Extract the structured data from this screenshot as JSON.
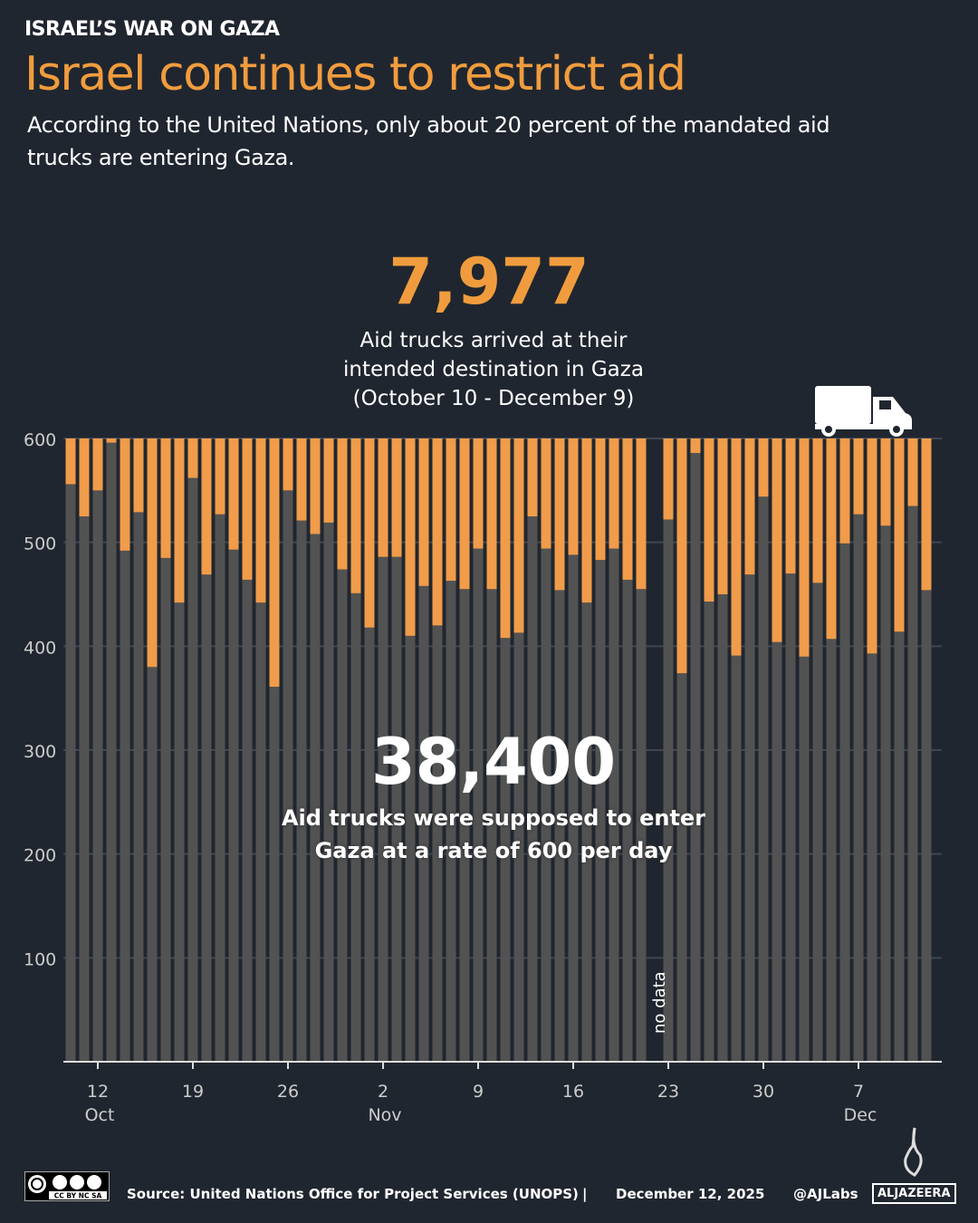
{
  "header": {
    "kicker": "ISRAEL’S WAR ON GAZA",
    "title": "Israel continues to restrict aid",
    "subtitle": "According to the United Nations, only about 20 percent of the mandated aid trucks are entering Gaza."
  },
  "annotations": {
    "arrived_total": "7,977",
    "arrived_label_1": "Aid trucks arrived at their",
    "arrived_label_2": "intended destination in Gaza",
    "arrived_label_3": "(October 10 - December 9)",
    "mandated_total": "38,400",
    "mandated_label_1": "Aid trucks were supposed to enter",
    "mandated_label_2": "Gaza at a rate of 600 per day",
    "no_data": "no data"
  },
  "chart_data": {
    "type": "bar",
    "stacked": true,
    "start_date": "2025-10-10",
    "end_date": "2025-12-12",
    "daily_target": 600,
    "ylim": [
      0,
      600
    ],
    "yticks": [
      100,
      200,
      300,
      400,
      500,
      600
    ],
    "grid": true,
    "x_ticks": [
      {
        "day": "12",
        "month": "Oct"
      },
      {
        "day": "19",
        "month": ""
      },
      {
        "day": "26",
        "month": ""
      },
      {
        "day": "2",
        "month": "Nov"
      },
      {
        "day": "9",
        "month": ""
      },
      {
        "day": "16",
        "month": ""
      },
      {
        "day": "23",
        "month": ""
      },
      {
        "day": "30",
        "month": ""
      },
      {
        "day": "7",
        "month": "Dec"
      }
    ],
    "x_tick_dates": [
      "2025-10-12",
      "2025-10-19",
      "2025-10-26",
      "2025-11-02",
      "2025-11-09",
      "2025-11-16",
      "2025-11-23",
      "2025-11-30",
      "2025-12-07"
    ],
    "series": [
      {
        "role": "arrived",
        "color": "#f09c4a",
        "values": [
          44,
          75,
          50,
          4,
          108,
          71,
          220,
          115,
          158,
          38,
          131,
          73,
          107,
          136,
          158,
          239,
          50,
          79,
          92,
          81,
          126,
          149,
          182,
          114,
          114,
          190,
          142,
          180,
          137,
          145,
          106,
          145,
          192,
          187,
          75,
          106,
          146,
          112,
          158,
          117,
          106,
          136,
          145,
          null,
          78,
          226,
          14,
          157,
          150,
          209,
          131,
          56,
          196,
          130,
          210,
          139,
          193,
          101,
          73,
          207,
          84,
          186,
          65,
          146
        ]
      },
      {
        "role": "shortfall",
        "color": "#525252"
      }
    ]
  },
  "colors": {
    "background": "#20262f",
    "accent": "#f09c3e",
    "shortfall": "#525252",
    "grid": "#3f4652"
  },
  "footer": {
    "license": "CC BY NC SA",
    "source": "Source:  United Nations Office for Project Services (UNOPS)",
    "separator": "|",
    "date": "December 12, 2025",
    "handle": "@AJLabs",
    "brand": "ALJAZEERA"
  }
}
